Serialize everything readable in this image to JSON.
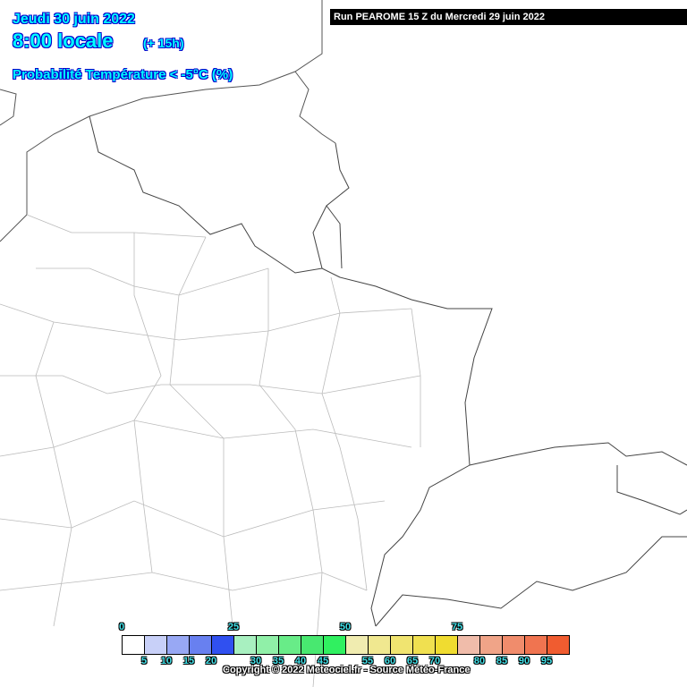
{
  "header": {
    "date": "Jeudi 30 juin 2022",
    "time": "8:00 locale",
    "lead": "(+ 15h)",
    "parameter": "Probabilité Température < -5°C (%)",
    "run": "Run PEAROME 15 Z du Mercredi 29 juin 2022"
  },
  "legend": {
    "colors": [
      "#ffffff",
      "#c8d0f8",
      "#98a8f4",
      "#6880f0",
      "#3050f0",
      "#a8f0c0",
      "#90f0a8",
      "#68ec88",
      "#48e870",
      "#30f060",
      "#f0ecb0",
      "#f0e890",
      "#f0e470",
      "#f0e050",
      "#f0dc30",
      "#f0bcaa",
      "#f0a488",
      "#f08c6c",
      "#f07450",
      "#f05c30"
    ],
    "upper_ticks": [
      "0",
      "25",
      "50",
      "75"
    ],
    "lower_ticks": [
      "5",
      "10",
      "15",
      "20",
      "30",
      "35",
      "40",
      "45",
      "55",
      "60",
      "65",
      "70",
      "80",
      "85",
      "90",
      "95"
    ]
  },
  "copyright": "Copyright © 2022 Meteociel.fr - Source Météo-France"
}
